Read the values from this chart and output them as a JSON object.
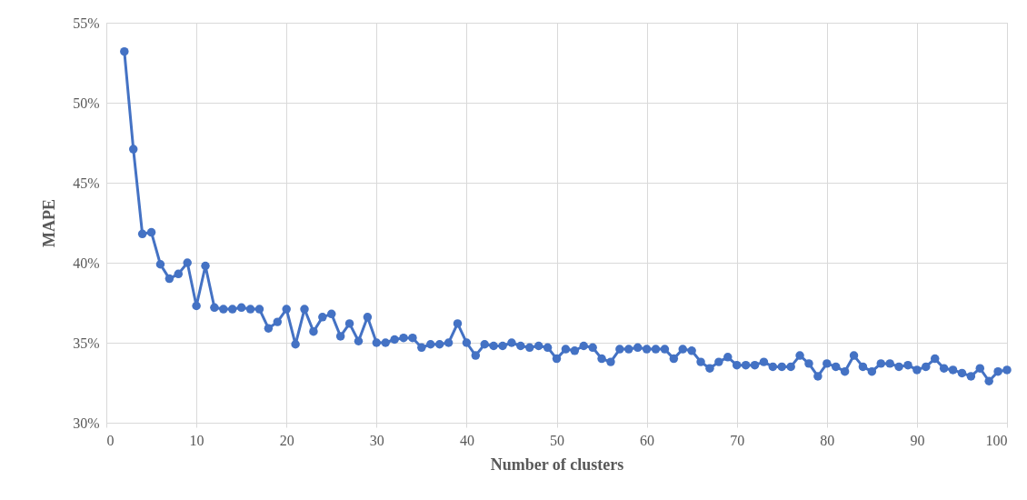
{
  "chart_data": {
    "type": "line",
    "xlabel": "Number of clusters",
    "ylabel": "MAPE",
    "x": [
      2,
      3,
      4,
      5,
      6,
      7,
      8,
      9,
      10,
      11,
      12,
      13,
      14,
      15,
      16,
      17,
      18,
      19,
      20,
      21,
      22,
      23,
      24,
      25,
      26,
      27,
      28,
      29,
      30,
      31,
      32,
      33,
      34,
      35,
      36,
      37,
      38,
      39,
      40,
      41,
      42,
      43,
      44,
      45,
      46,
      47,
      48,
      49,
      50,
      51,
      52,
      53,
      54,
      55,
      56,
      57,
      58,
      59,
      60,
      61,
      62,
      63,
      64,
      65,
      66,
      67,
      68,
      69,
      70,
      71,
      72,
      73,
      74,
      75,
      76,
      77,
      78,
      79,
      80,
      81,
      82,
      83,
      84,
      85,
      86,
      87,
      88,
      89,
      90,
      91,
      92,
      93,
      94,
      95,
      96,
      97,
      98,
      99,
      100
    ],
    "series": [
      {
        "color": "#4472c4",
        "values": [
          53.2,
          47.1,
          41.8,
          41.9,
          39.9,
          39.0,
          39.3,
          40.0,
          37.3,
          39.8,
          37.2,
          37.1,
          37.1,
          37.2,
          37.1,
          37.1,
          35.9,
          36.3,
          37.1,
          34.9,
          37.1,
          35.7,
          36.6,
          36.8,
          35.4,
          36.2,
          35.1,
          36.6,
          35.0,
          35.0,
          35.2,
          35.3,
          35.3,
          34.7,
          34.9,
          34.9,
          35.0,
          36.2,
          35.0,
          34.2,
          34.9,
          34.8,
          34.8,
          35.0,
          34.8,
          34.7,
          34.8,
          34.7,
          34.0,
          34.6,
          34.5,
          34.8,
          34.7,
          34.0,
          33.8,
          34.6,
          34.6,
          34.7,
          34.6,
          34.6,
          34.6,
          34.0,
          34.6,
          34.5,
          33.8,
          33.4,
          33.8,
          34.1,
          33.6,
          33.6,
          33.6,
          33.8,
          33.5,
          33.5,
          33.5,
          34.2,
          33.7,
          32.9,
          33.7,
          33.5,
          33.2,
          34.2,
          33.5,
          33.2,
          33.7,
          33.7,
          33.5,
          33.6,
          33.3,
          33.5,
          34.0,
          33.4,
          33.3,
          33.1,
          32.9,
          33.4,
          32.6,
          33.2,
          33.3
        ]
      }
    ],
    "xlim": [
      0,
      100
    ],
    "xticks": [
      0,
      10,
      20,
      30,
      40,
      50,
      60,
      70,
      80,
      90,
      100
    ],
    "ylim": [
      30,
      55
    ],
    "yticks": [
      {
        "value": 30,
        "label": "30%"
      },
      {
        "value": 35,
        "label": "35%"
      },
      {
        "value": 40,
        "label": "40%"
      },
      {
        "value": 45,
        "label": "45%"
      },
      {
        "value": 50,
        "label": "50%"
      },
      {
        "value": 55,
        "label": "55%"
      }
    ],
    "grid": true,
    "marker": "circle",
    "line_style": "solid"
  }
}
